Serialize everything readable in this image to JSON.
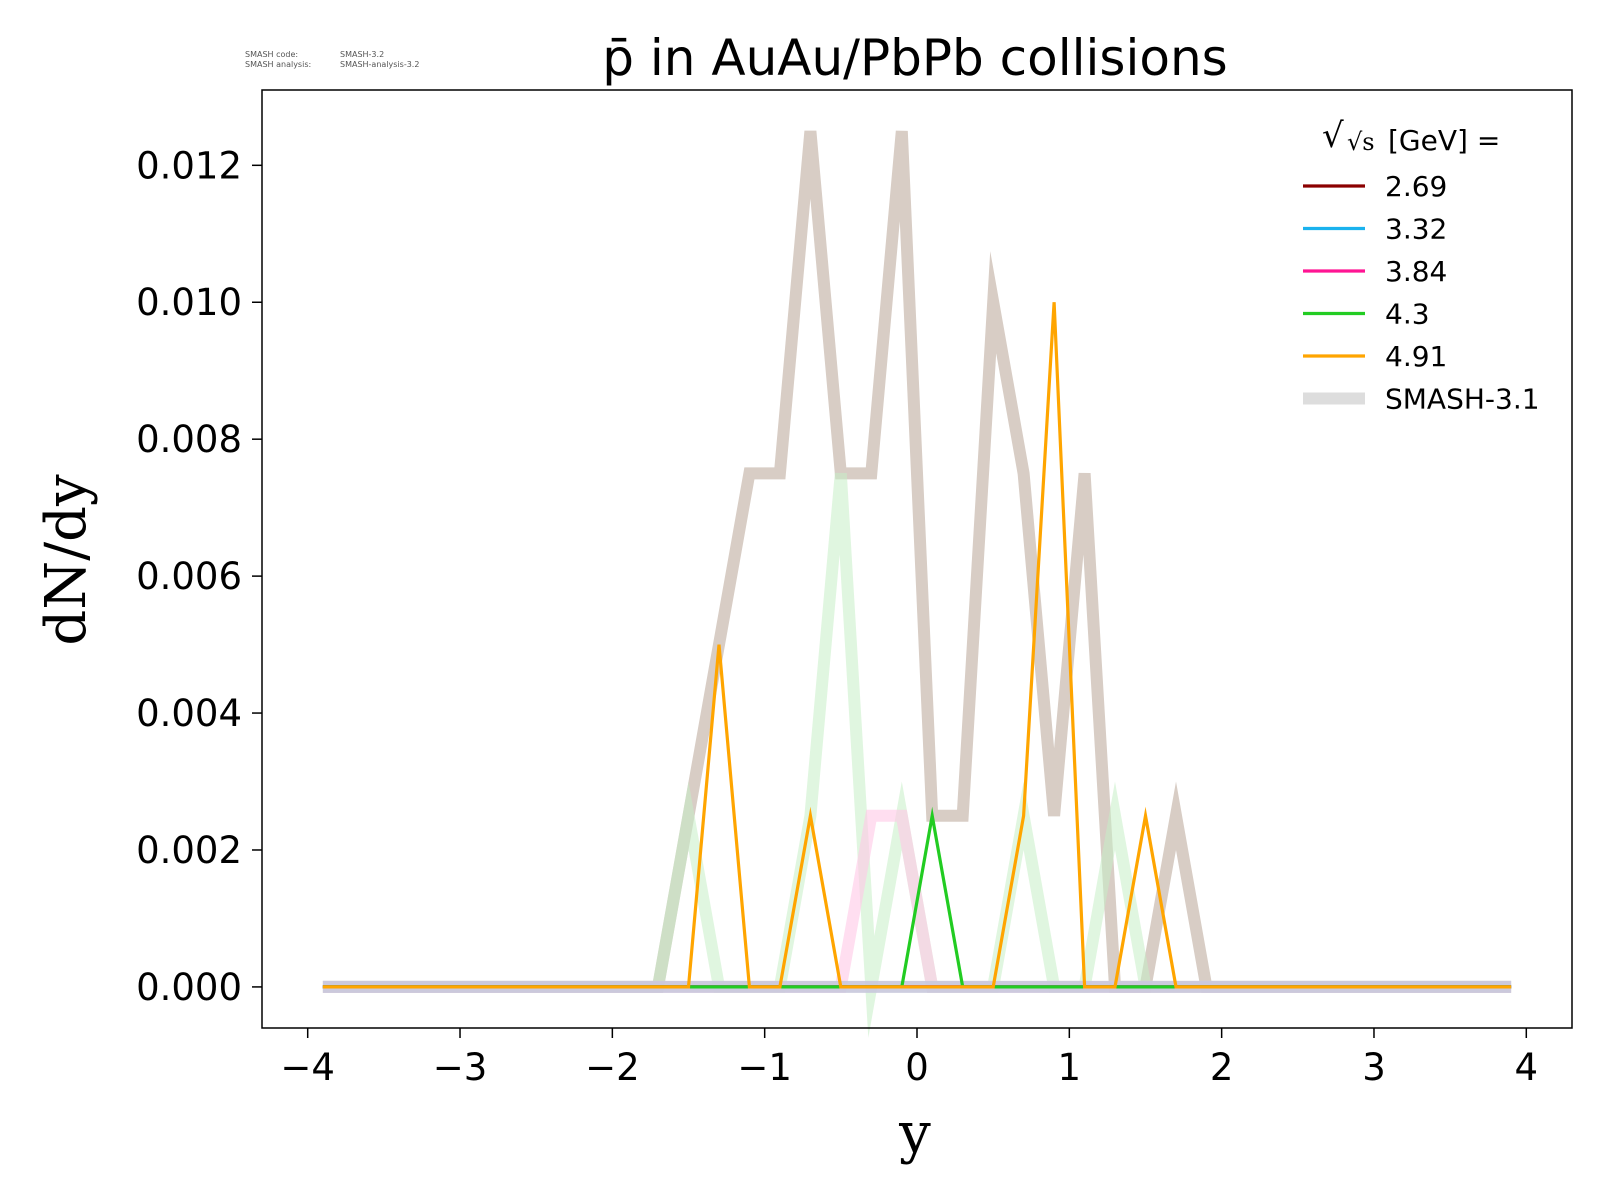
{
  "meta": {
    "code_label": "SMASH code:",
    "code_value": "SMASH-3.2",
    "analysis_label": "SMASH analysis:",
    "analysis_value": "SMASH-analysis-3.2"
  },
  "chart_data": {
    "type": "line",
    "title": "p̄ in AuAu/PbPb collisions",
    "xlabel": "y",
    "ylabel": "dN/dy",
    "xlim": [
      -4.3,
      4.3
    ],
    "ylim": [
      -0.0006,
      0.0131
    ],
    "xticks": [
      -4,
      -3,
      -2,
      -1,
      0,
      1,
      2,
      3,
      4
    ],
    "xtick_labels": [
      "−4",
      "−3",
      "−2",
      "−1",
      "0",
      "1",
      "2",
      "3",
      "4"
    ],
    "yticks": [
      0.0,
      0.002,
      0.004,
      0.006,
      0.008,
      0.01,
      0.012
    ],
    "ytick_labels": [
      "0.000",
      "0.002",
      "0.004",
      "0.006",
      "0.008",
      "0.010",
      "0.012"
    ],
    "grid": false,
    "legend": {
      "placement": "top-right",
      "title_prefix": "√s",
      "title_suffix": "[GeV] ="
    },
    "series": [
      {
        "name": "SMASH-3.1",
        "color": "#d8cdc5",
        "opacity": 1.0,
        "reference": true,
        "legend_color": "#dddddd",
        "x": [
          -3.9,
          -3.7,
          -3.5,
          -3.3,
          -3.1,
          -2.9,
          -2.7,
          -2.5,
          -2.3,
          -2.1,
          -1.9,
          -1.7,
          -1.5,
          -1.3,
          -1.1,
          -0.9,
          -0.7,
          -0.5,
          -0.3,
          -0.1,
          0.1,
          0.3,
          0.5,
          0.7,
          0.9,
          1.1,
          1.3,
          1.5,
          1.7,
          1.9,
          2.1,
          2.3,
          2.5,
          2.7,
          2.9,
          3.1,
          3.3,
          3.5,
          3.7,
          3.9
        ],
        "y": [
          0,
          0,
          0,
          0,
          0,
          0,
          0,
          0,
          0,
          0,
          0,
          0,
          0.0025,
          0.005,
          0.0075,
          0.0075,
          0.0125,
          0.0075,
          0.0075,
          0.0125,
          0.0025,
          0.0025,
          0.01,
          0.0075,
          0.0025,
          0.0075,
          0,
          0,
          0.0025,
          0,
          0,
          0,
          0,
          0,
          0,
          0,
          0,
          0,
          0,
          0
        ]
      },
      {
        "name": "",
        "color": "#c6efc6",
        "opacity": 0.55,
        "reference": true,
        "x": [
          -3.9,
          -3.7,
          -3.5,
          -3.3,
          -3.1,
          -2.9,
          -2.7,
          -2.5,
          -2.3,
          -2.1,
          -1.9,
          -1.7,
          -1.5,
          -1.3,
          -1.1,
          -0.9,
          -0.7,
          -0.5,
          -0.3,
          -0.1,
          0.1,
          0.3,
          0.5,
          0.7,
          0.9,
          1.1,
          1.3,
          1.5,
          1.7,
          1.9,
          2.1,
          2.3,
          2.5,
          2.7,
          2.9,
          3.1,
          3.3,
          3.5,
          3.7,
          3.9
        ],
        "y": [
          0,
          0,
          0,
          0,
          0,
          0,
          0,
          0,
          0,
          0,
          0,
          0,
          0.0025,
          0,
          0,
          0,
          0.0025,
          0.0075,
          0,
          0.0025,
          0,
          0,
          0,
          0.0025,
          0,
          0,
          0.0025,
          0,
          0,
          0,
          0,
          0,
          0,
          0,
          0,
          0,
          0,
          0,
          0,
          0
        ]
      },
      {
        "name": "",
        "color": "#ffc8e6",
        "opacity": 0.6,
        "reference": true,
        "x": [
          -3.9,
          -3.7,
          -3.5,
          -3.3,
          -3.1,
          -2.9,
          -2.7,
          -2.5,
          -2.3,
          -2.1,
          -1.9,
          -1.7,
          -1.5,
          -1.3,
          -1.1,
          -0.9,
          -0.7,
          -0.5,
          -0.3,
          -0.1,
          0.1,
          0.3,
          0.5,
          0.7,
          0.9,
          1.1,
          1.3,
          1.5,
          1.7,
          1.9,
          2.1,
          2.3,
          2.5,
          2.7,
          2.9,
          3.1,
          3.3,
          3.5,
          3.7,
          3.9
        ],
        "y": [
          0,
          0,
          0,
          0,
          0,
          0,
          0,
          0,
          0,
          0,
          0,
          0,
          0,
          0,
          0,
          0,
          0,
          0,
          0.0025,
          0.0025,
          0,
          0,
          0,
          0,
          0,
          0,
          0,
          0,
          0,
          0,
          0,
          0,
          0,
          0,
          0,
          0,
          0,
          0,
          0,
          0
        ]
      },
      {
        "name": "",
        "color": "#c8c8dc",
        "opacity": 0.9,
        "reference": true,
        "x": [
          -3.9,
          3.9
        ],
        "y": [
          0,
          0
        ]
      },
      {
        "name": "2.69",
        "color": "#8b0000",
        "opacity": 1.0,
        "reference": false,
        "x": [
          -3.9,
          3.9
        ],
        "y": [
          0,
          0
        ]
      },
      {
        "name": "3.32",
        "color": "#1ab2ee",
        "opacity": 1.0,
        "reference": false,
        "x": [
          -3.9,
          3.9
        ],
        "y": [
          0,
          0
        ]
      },
      {
        "name": "3.84",
        "color": "#ff1493",
        "opacity": 1.0,
        "reference": false,
        "x": [
          -3.9,
          3.9
        ],
        "y": [
          0,
          0
        ]
      },
      {
        "name": "4.3",
        "color": "#22cc22",
        "opacity": 1.0,
        "reference": false,
        "x": [
          -3.9,
          -1.5,
          -1.3,
          -1.1,
          -0.9,
          -0.7,
          -0.5,
          -0.3,
          -0.1,
          0.1,
          0.3,
          0.5,
          0.7,
          0.9,
          1.1,
          1.3,
          1.5,
          1.7,
          1.9,
          3.9
        ],
        "y": [
          0,
          0,
          0,
          0,
          0,
          0,
          0,
          0,
          0,
          0.0025,
          0,
          0,
          0,
          0,
          0,
          0,
          0,
          0,
          0,
          0
        ]
      },
      {
        "name": "4.91",
        "color": "#ffa500",
        "opacity": 1.0,
        "reference": false,
        "x": [
          -3.9,
          -1.7,
          -1.5,
          -1.3,
          -1.1,
          -0.9,
          -0.7,
          -0.5,
          -0.3,
          -0.1,
          0.1,
          0.3,
          0.5,
          0.7,
          0.9,
          1.1,
          1.3,
          1.5,
          1.7,
          1.9,
          3.9
        ],
        "y": [
          0,
          0,
          0,
          0.005,
          0,
          0,
          0.0025,
          0,
          0,
          0,
          0,
          0,
          0,
          0.0025,
          0.01,
          0,
          0,
          0.0025,
          0,
          0,
          0
        ]
      }
    ]
  }
}
